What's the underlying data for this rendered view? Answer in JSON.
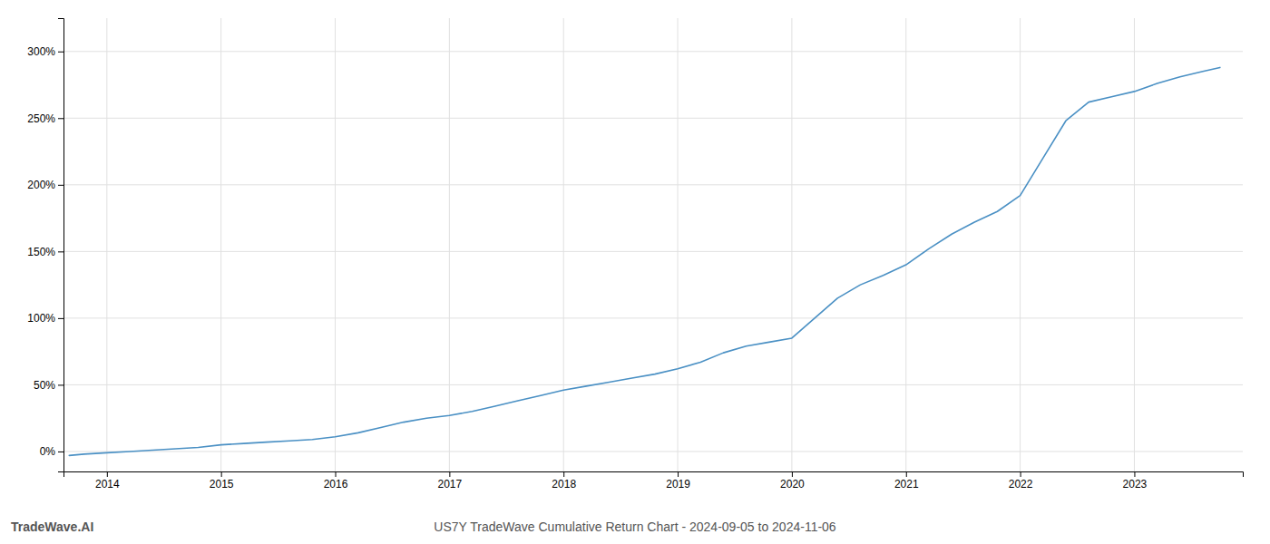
{
  "chart_data": {
    "type": "line",
    "title": "US7Y TradeWave Cumulative Return Chart - 2024-09-05 to 2024-11-06",
    "annotations": [
      "TradeWave.AI"
    ],
    "color": "#4a90c4",
    "grid": true,
    "x": [
      2013.67,
      2013.8,
      2014.0,
      2014.2,
      2014.4,
      2014.6,
      2014.8,
      2015.0,
      2015.2,
      2015.4,
      2015.6,
      2015.8,
      2016.0,
      2016.2,
      2016.4,
      2016.6,
      2016.8,
      2017.0,
      2017.2,
      2017.4,
      2017.6,
      2017.8,
      2018.0,
      2018.2,
      2018.4,
      2018.6,
      2018.8,
      2019.0,
      2019.2,
      2019.4,
      2019.6,
      2019.8,
      2020.0,
      2020.2,
      2020.4,
      2020.6,
      2020.8,
      2021.0,
      2021.2,
      2021.4,
      2021.6,
      2021.8,
      2022.0,
      2022.2,
      2022.4,
      2022.6,
      2022.8,
      2023.0,
      2023.2,
      2023.4,
      2023.6,
      2023.75
    ],
    "values": [
      -3,
      -2,
      -1,
      0,
      1,
      2,
      3,
      5,
      6,
      7,
      8,
      9,
      11,
      14,
      18,
      22,
      25,
      27,
      30,
      34,
      38,
      42,
      46,
      49,
      52,
      55,
      58,
      62,
      67,
      74,
      79,
      82,
      85,
      100,
      115,
      125,
      132,
      140,
      152,
      163,
      172,
      180,
      192,
      220,
      248,
      262,
      266,
      270,
      276,
      281,
      285,
      288
    ],
    "xlim": [
      2013.62,
      2023.95
    ],
    "xticks": [
      2014,
      2015,
      2016,
      2017,
      2018,
      2019,
      2020,
      2021,
      2022,
      2023
    ],
    "ylim": [
      -15,
      325
    ],
    "yticks": [
      {
        "value": 0,
        "label": "0%"
      },
      {
        "value": 50,
        "label": "50%"
      },
      {
        "value": 100,
        "label": "100%"
      },
      {
        "value": 150,
        "label": "150%"
      },
      {
        "value": 200,
        "label": "200%"
      },
      {
        "value": 250,
        "label": "250%"
      },
      {
        "value": 300,
        "label": "300%"
      }
    ]
  }
}
